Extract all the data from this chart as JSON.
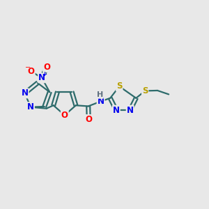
{
  "bg_color": "#e8e8e8",
  "bond_color": "#2d6b6b",
  "bond_lw": 1.6,
  "atom_colors": {
    "N": "#0000ee",
    "O": "#ff0000",
    "S": "#b8a000",
    "H": "#607080",
    "C": "#2d6b6b"
  },
  "fs": 8.5,
  "xlim": [
    0,
    12
  ],
  "ylim": [
    0,
    10
  ]
}
